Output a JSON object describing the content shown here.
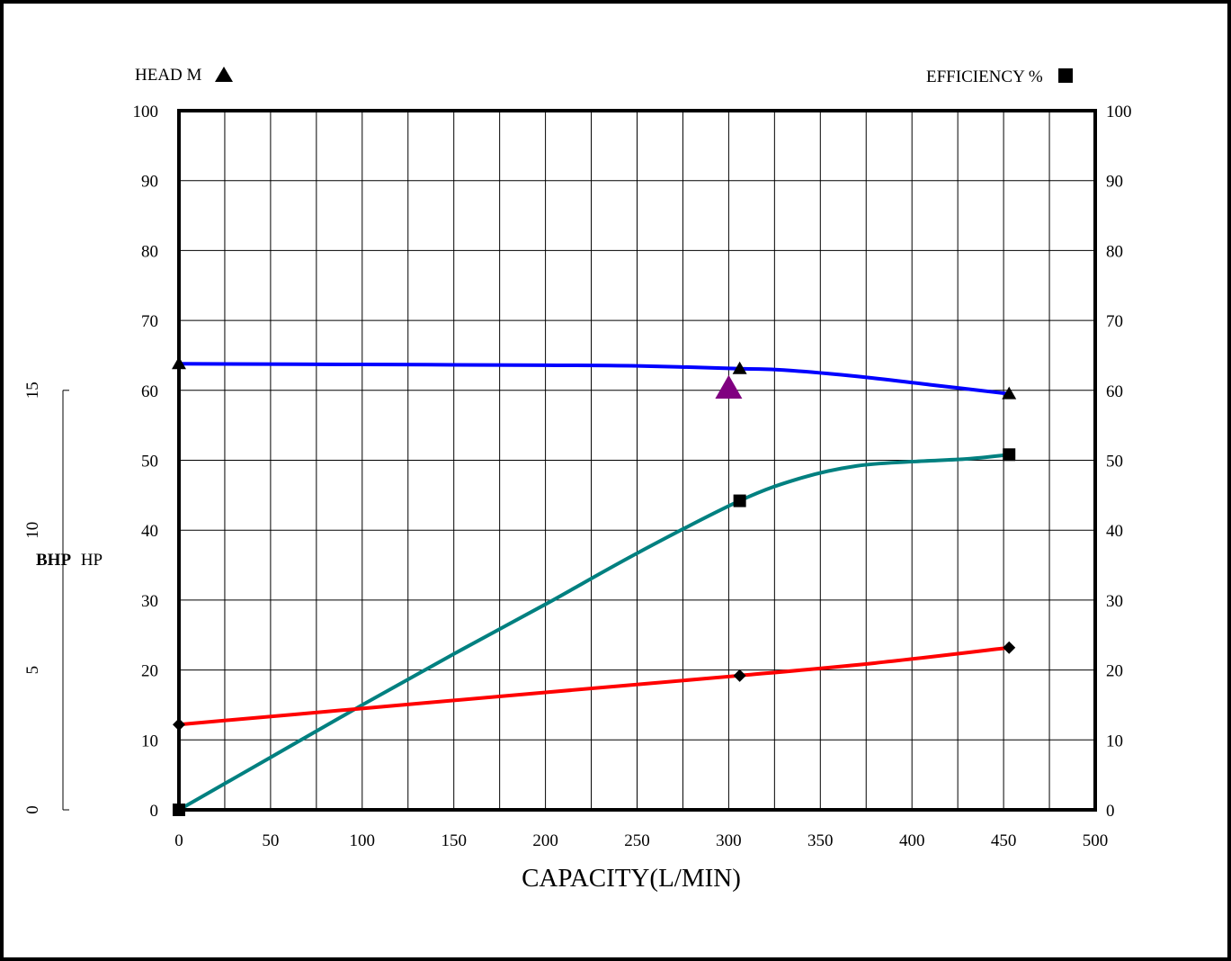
{
  "chart_data": {
    "type": "line",
    "xlabel": "CAPACITY(L/MIN)",
    "left_axis_label": "HEAD  M",
    "right_axis_label": "EFFICIENCY  %",
    "bhp_label_bold": "BHP",
    "bhp_label_unit": "HP",
    "xlim": [
      0,
      500
    ],
    "ylim": [
      0,
      100
    ],
    "bhp_lim": [
      0,
      15
    ],
    "x_ticks": [
      "0",
      "50",
      "100",
      "150",
      "200",
      "250",
      "300",
      "350",
      "400",
      "450",
      "500"
    ],
    "y_ticks": [
      "0",
      "10",
      "20",
      "30",
      "40",
      "50",
      "60",
      "70",
      "80",
      "90",
      "100"
    ],
    "bhp_ticks": [
      "0",
      "5",
      "10",
      "15"
    ],
    "grid": true,
    "series": [
      {
        "id": "head",
        "color": "#0000ff",
        "marker": "triangle",
        "points": [
          [
            0,
            63.8
          ],
          [
            306,
            63.1
          ],
          [
            453,
            59.5
          ]
        ],
        "curve": [
          [
            0,
            63.8
          ],
          [
            100,
            63.7
          ],
          [
            200,
            63.6
          ],
          [
            250,
            63.5
          ],
          [
            306,
            63.1
          ],
          [
            330,
            62.9
          ],
          [
            370,
            62.0
          ],
          [
            410,
            60.8
          ],
          [
            453,
            59.5
          ]
        ]
      },
      {
        "id": "efficiency",
        "color": "#008080",
        "marker": "square",
        "points": [
          [
            0,
            0
          ],
          [
            306,
            44.2
          ],
          [
            453,
            50.8
          ]
        ],
        "curve": [
          [
            0,
            0
          ],
          [
            50,
            7.5
          ],
          [
            100,
            15
          ],
          [
            150,
            22.3
          ],
          [
            200,
            29.4
          ],
          [
            250,
            36.7
          ],
          [
            306,
            44.2
          ],
          [
            340,
            47.5
          ],
          [
            370,
            49.2
          ],
          [
            400,
            49.8
          ],
          [
            430,
            50.2
          ],
          [
            453,
            50.8
          ]
        ]
      },
      {
        "id": "bhp",
        "color": "#ff0000",
        "marker": "diamond",
        "points": [
          [
            0,
            12.2
          ],
          [
            306,
            19.2
          ],
          [
            453,
            23.2
          ]
        ],
        "curve": [
          [
            0,
            12.2
          ],
          [
            100,
            14.5
          ],
          [
            200,
            16.8
          ],
          [
            306,
            19.2
          ],
          [
            380,
            21.0
          ],
          [
            453,
            23.2
          ]
        ]
      }
    ],
    "duty_point": {
      "x": 300,
      "y": 60,
      "color": "#800080",
      "marker": "triangle"
    }
  }
}
